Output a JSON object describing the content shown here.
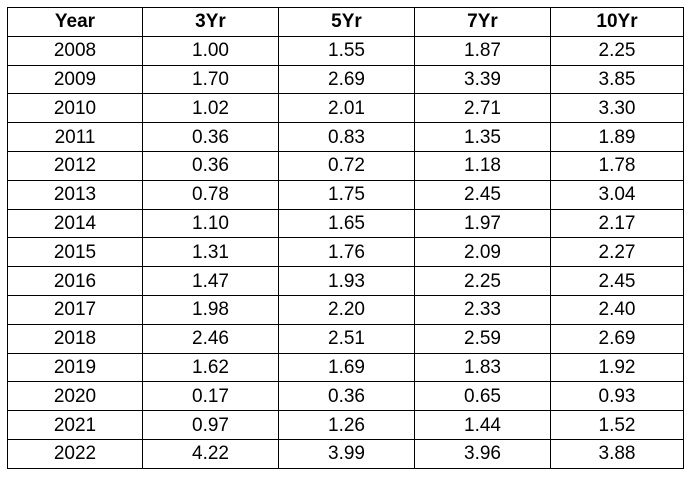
{
  "chart_data": {
    "type": "table",
    "columns": [
      "Year",
      "3Yr",
      "5Yr",
      "7Yr",
      "10Yr"
    ],
    "rows": [
      [
        "2008",
        "1.00",
        "1.55",
        "1.87",
        "2.25"
      ],
      [
        "2009",
        "1.70",
        "2.69",
        "3.39",
        "3.85"
      ],
      [
        "2010",
        "1.02",
        "2.01",
        "2.71",
        "3.30"
      ],
      [
        "2011",
        "0.36",
        "0.83",
        "1.35",
        "1.89"
      ],
      [
        "2012",
        "0.36",
        "0.72",
        "1.18",
        "1.78"
      ],
      [
        "2013",
        "0.78",
        "1.75",
        "2.45",
        "3.04"
      ],
      [
        "2014",
        "1.10",
        "1.65",
        "1.97",
        "2.17"
      ],
      [
        "2015",
        "1.31",
        "1.76",
        "2.09",
        "2.27"
      ],
      [
        "2016",
        "1.47",
        "1.93",
        "2.25",
        "2.45"
      ],
      [
        "2017",
        "1.98",
        "2.20",
        "2.33",
        "2.40"
      ],
      [
        "2018",
        "2.46",
        "2.51",
        "2.59",
        "2.69"
      ],
      [
        "2019",
        "1.62",
        "1.69",
        "1.83",
        "1.92"
      ],
      [
        "2020",
        "0.17",
        "0.36",
        "0.65",
        "0.93"
      ],
      [
        "2021",
        "0.97",
        "1.26",
        "1.44",
        "1.52"
      ],
      [
        "2022",
        "4.22",
        "3.99",
        "3.96",
        "3.88"
      ]
    ]
  }
}
